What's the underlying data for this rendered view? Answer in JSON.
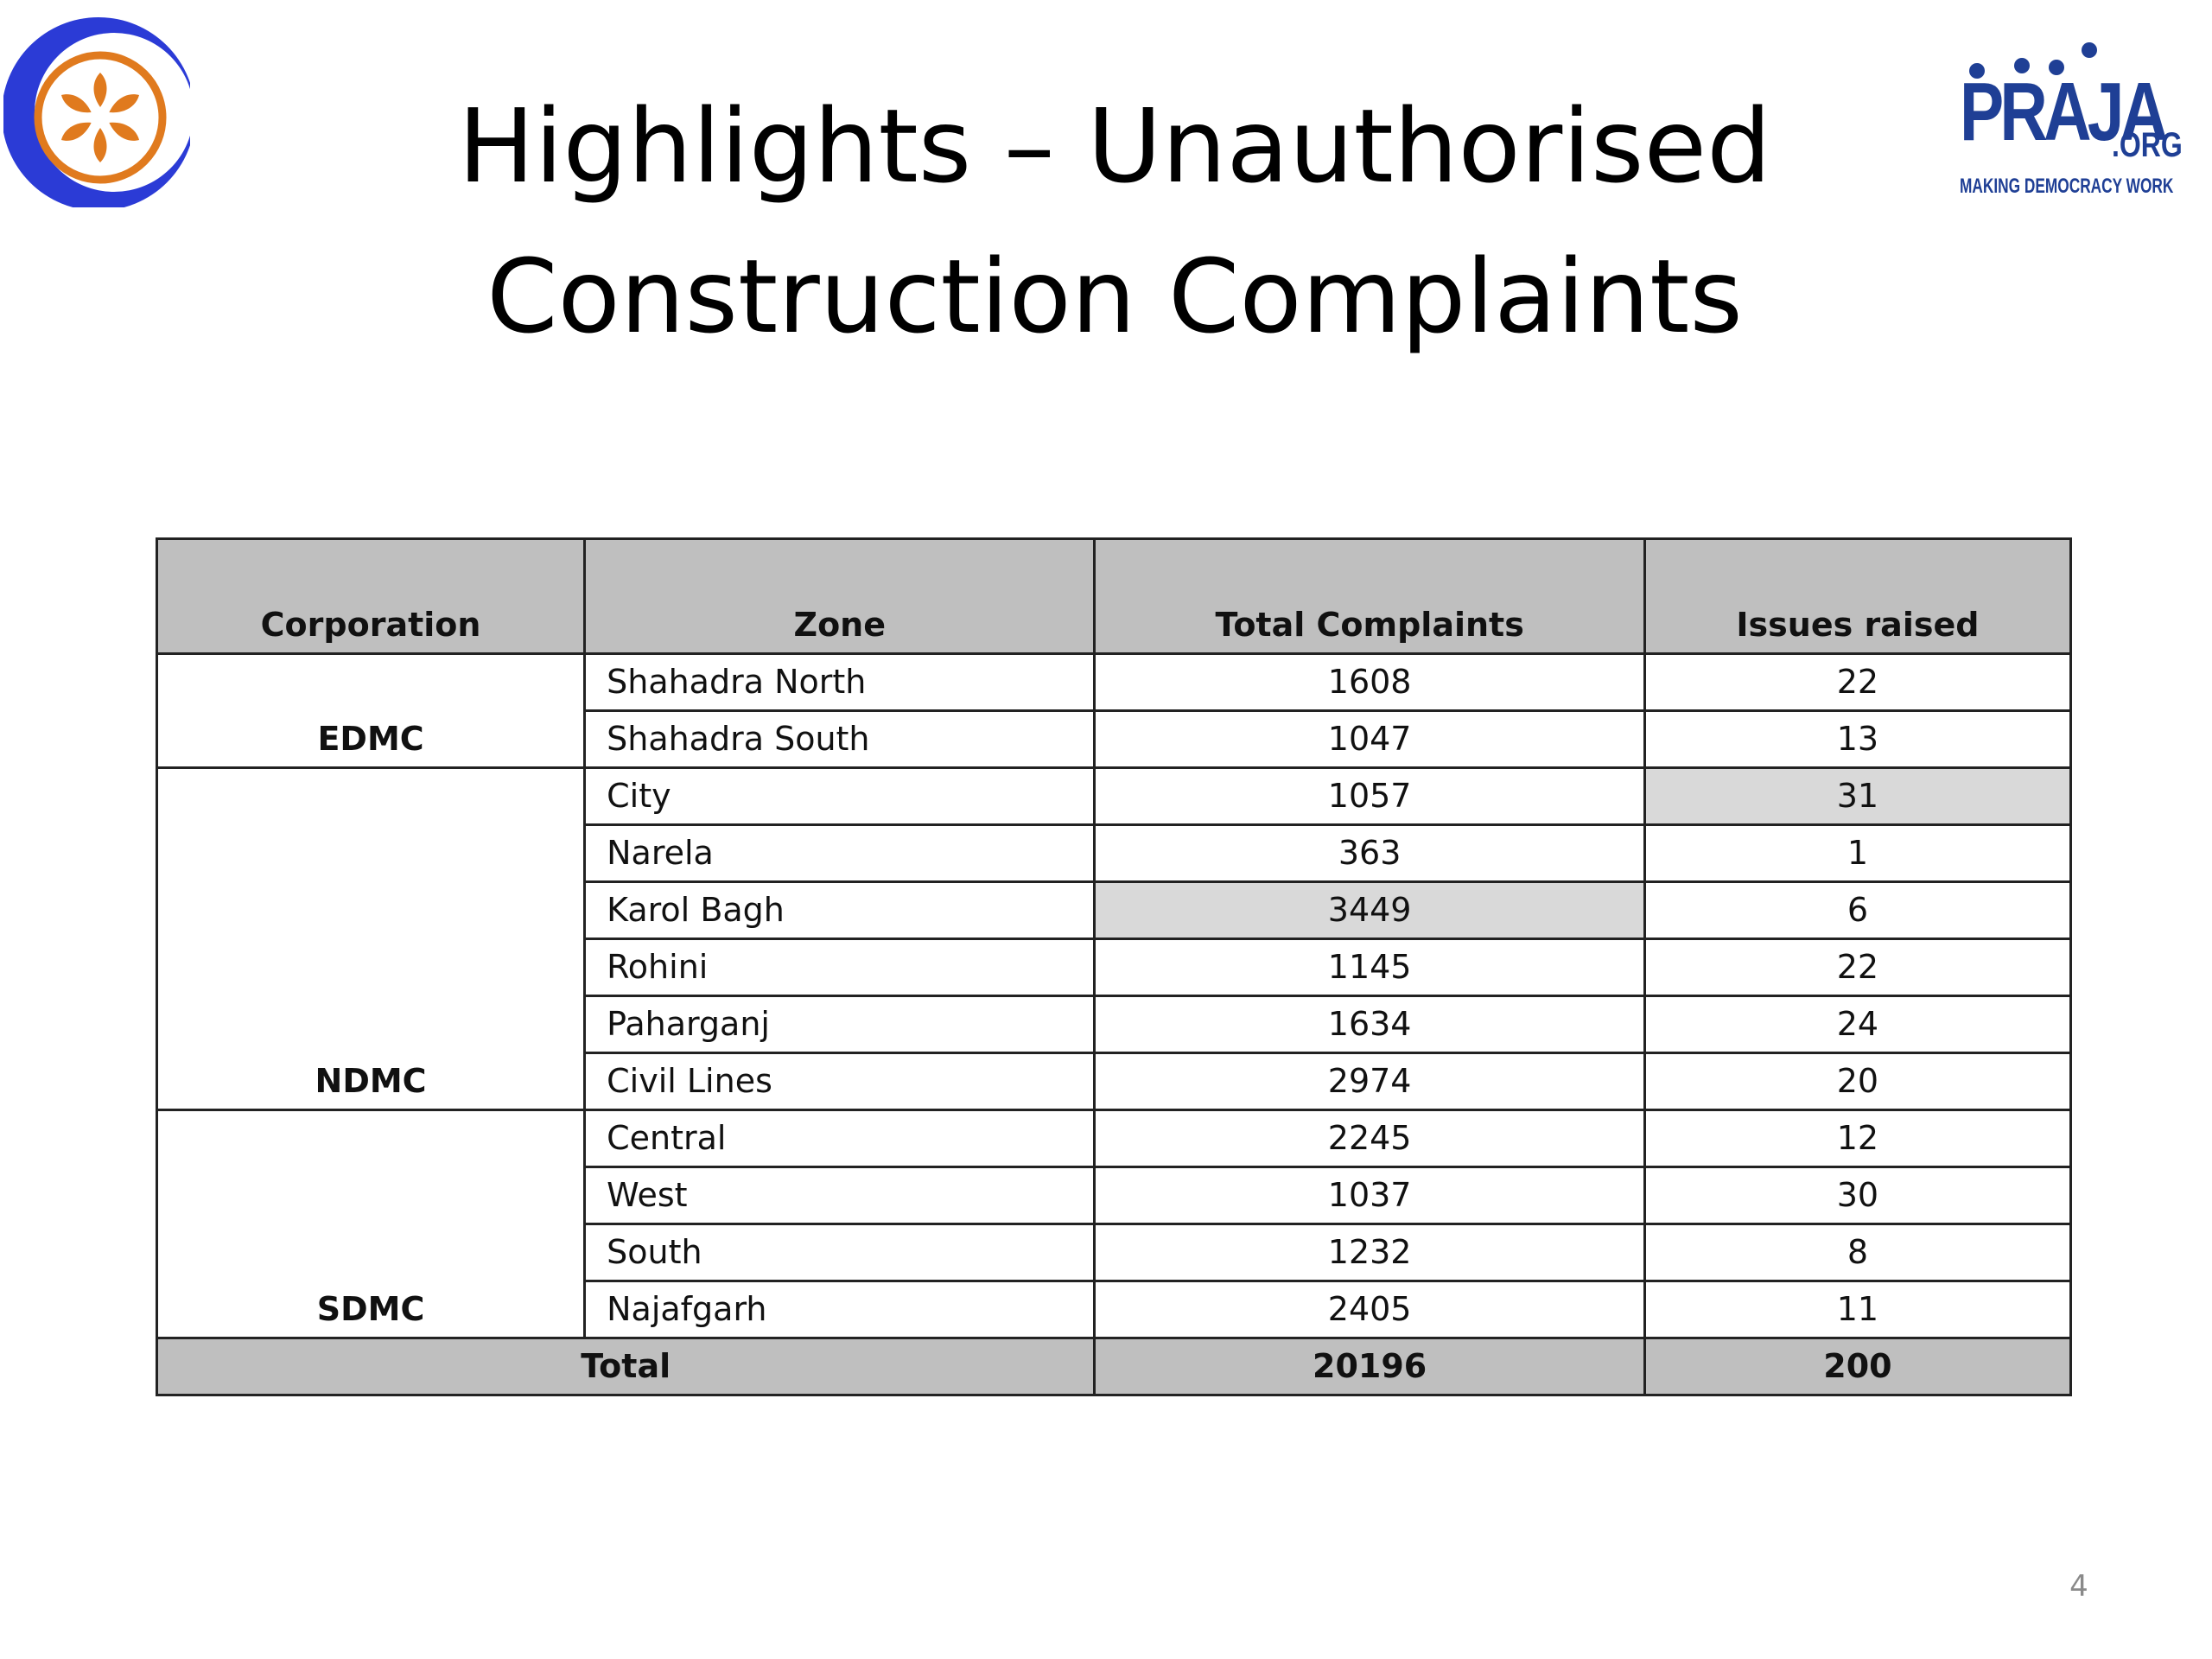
{
  "title": {
    "line1": "Highlights – Unauthorised",
    "line2": "Construction Complaints"
  },
  "logos": {
    "left": {
      "icon": "flower-crescent-logo-icon",
      "colors": {
        "crescent": "#2b3bd6",
        "circle": "#e07a1e"
      }
    },
    "right": {
      "icon": "praja-logo-icon",
      "word": "PRAJA",
      "suffix": ".ORG",
      "tagline": "MAKING DEMOCRACY WORK",
      "color": "#1f3f95"
    }
  },
  "table": {
    "headers": [
      "Corporation",
      "Zone",
      "Total Complaints",
      "Issues raised"
    ],
    "groups": [
      {
        "corporation": "EDMC",
        "rows": [
          {
            "zone": "Shahadra North",
            "total": "1608",
            "issues": "22"
          },
          {
            "zone": "Shahadra South",
            "total": "1047",
            "issues": "13"
          }
        ]
      },
      {
        "corporation": "NDMC",
        "rows": [
          {
            "zone": "City",
            "total": "1057",
            "issues": "31"
          },
          {
            "zone": "Narela",
            "total": "363",
            "issues": "1"
          },
          {
            "zone": "Karol Bagh",
            "total": "3449",
            "issues": "6"
          },
          {
            "zone": "Rohini",
            "total": "1145",
            "issues": "22"
          },
          {
            "zone": "Paharganj",
            "total": "1634",
            "issues": "24"
          },
          {
            "zone": "Civil Lines",
            "total": "2974",
            "issues": "20"
          }
        ]
      },
      {
        "corporation": "SDMC",
        "rows": [
          {
            "zone": "Central",
            "total": "2245",
            "issues": "12"
          },
          {
            "zone": "West",
            "total": "1037",
            "issues": "30"
          },
          {
            "zone": "South",
            "total": "1232",
            "issues": "8"
          },
          {
            "zone": "Najafgarh",
            "total": "2405",
            "issues": "11"
          }
        ]
      }
    ],
    "total": {
      "label": "Total",
      "complaints": "20196",
      "issues": "200"
    },
    "colors": {
      "header_bg": "#bfbfbf",
      "highlight_bg": "#d9d9d9"
    }
  },
  "page_number": "4"
}
